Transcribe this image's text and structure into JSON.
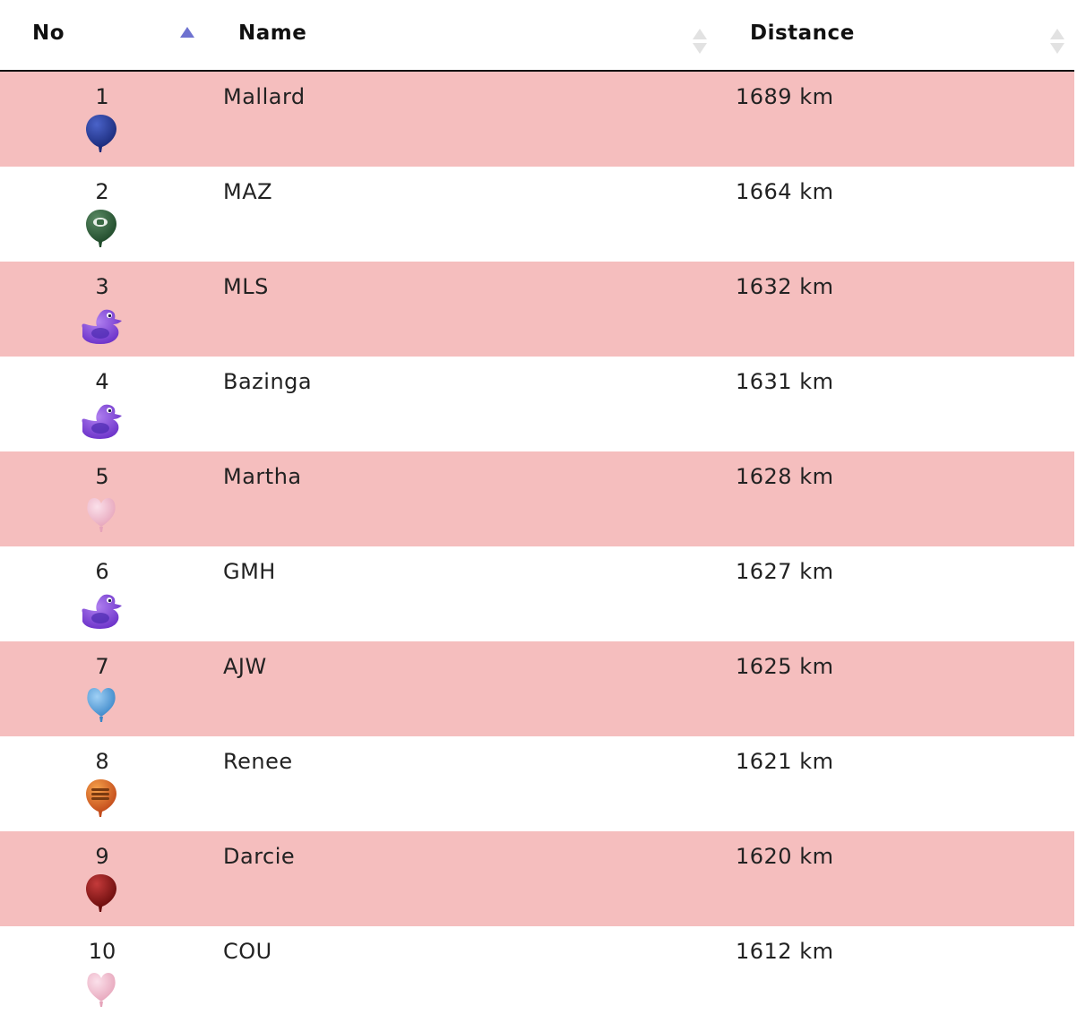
{
  "header": {
    "col_no": "No",
    "col_name": "Name",
    "col_distance": "Distance"
  },
  "rows": [
    {
      "no": "1",
      "name": "Mallard",
      "distance": "1689 km",
      "icon": "balloon-dark-blue-icon"
    },
    {
      "no": "2",
      "name": "MAZ",
      "distance": "1664 km",
      "icon": "balloon-green-icon"
    },
    {
      "no": "3",
      "name": "MLS",
      "distance": "1632 km",
      "icon": "duck-purple-icon"
    },
    {
      "no": "4",
      "name": "Bazinga",
      "distance": "1631 km",
      "icon": "duck-purple-icon"
    },
    {
      "no": "5",
      "name": "Martha",
      "distance": "1628 km",
      "icon": "heart-pink-icon"
    },
    {
      "no": "6",
      "name": "GMH",
      "distance": "1627 km",
      "icon": "duck-purple-icon"
    },
    {
      "no": "7",
      "name": "AJW",
      "distance": "1625 km",
      "icon": "heart-blue-icon"
    },
    {
      "no": "8",
      "name": "Renee",
      "distance": "1621 km",
      "icon": "balloon-orange-icon"
    },
    {
      "no": "9",
      "name": "Darcie",
      "distance": "1620 km",
      "icon": "balloon-dark-red-icon"
    },
    {
      "no": "10",
      "name": "COU",
      "distance": "1612 km",
      "icon": "heart-pink-icon"
    }
  ],
  "colors": {
    "row_odd": "#f5bebe",
    "row_even": "#ffffff",
    "sort_active": "#6e72d0",
    "sort_inactive": "#e2e2e2"
  }
}
